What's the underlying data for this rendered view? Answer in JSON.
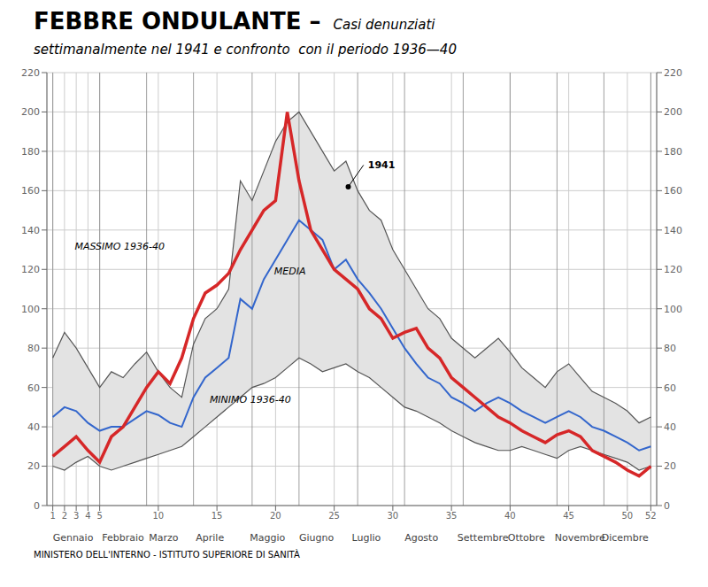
{
  "chart_data": {
    "type": "line",
    "title": "FEBBRE ONDULANTE –",
    "title_note": "Casi denunziati",
    "subtitle": "settimanalmente nel 1941 e confronto  con il periodo 1936—40",
    "footer": "MINISTERO DELL'INTERNO - ISTITUTO SUPERIORE DI SANITÀ",
    "x": [
      1,
      2,
      3,
      4,
      5,
      6,
      7,
      8,
      9,
      10,
      11,
      12,
      13,
      14,
      15,
      16,
      17,
      18,
      19,
      20,
      21,
      22,
      23,
      24,
      25,
      26,
      27,
      28,
      29,
      30,
      31,
      32,
      33,
      34,
      35,
      36,
      37,
      38,
      39,
      40,
      41,
      42,
      43,
      44,
      45,
      46,
      47,
      48,
      49,
      50,
      51,
      52
    ],
    "xlim": [
      0.5,
      52.5
    ],
    "xticks": [
      1,
      2,
      3,
      4,
      5,
      10,
      15,
      20,
      25,
      30,
      35,
      40,
      45,
      50,
      52
    ],
    "ylim": [
      0,
      220
    ],
    "yticks": [
      0,
      20,
      40,
      60,
      80,
      100,
      120,
      140,
      160,
      180,
      200,
      220
    ],
    "y2lim": [
      0,
      220
    ],
    "y2ticks": [
      0,
      20,
      40,
      60,
      80,
      100,
      120,
      140,
      160,
      180,
      200,
      220
    ],
    "grid": true,
    "series": [
      {
        "name": "MASSIMO 1936-40",
        "color": "#555555",
        "values": [
          75,
          88,
          80,
          70,
          60,
          68,
          65,
          72,
          78,
          68,
          60,
          55,
          82,
          95,
          100,
          110,
          165,
          155,
          170,
          185,
          195,
          200,
          190,
          180,
          170,
          175,
          160,
          150,
          145,
          130,
          120,
          110,
          100,
          95,
          85,
          80,
          75,
          80,
          85,
          78,
          70,
          65,
          60,
          68,
          72,
          65,
          58,
          55,
          52,
          48,
          42,
          45
        ]
      },
      {
        "name": "MINIMO 1936-40",
        "color": "#555555",
        "values": [
          20,
          18,
          22,
          25,
          20,
          18,
          20,
          22,
          24,
          26,
          28,
          30,
          35,
          40,
          45,
          50,
          55,
          60,
          62,
          65,
          70,
          75,
          72,
          68,
          70,
          72,
          68,
          65,
          60,
          55,
          50,
          48,
          45,
          42,
          38,
          35,
          32,
          30,
          28,
          28,
          30,
          28,
          26,
          24,
          28,
          30,
          28,
          26,
          24,
          22,
          18,
          20
        ]
      },
      {
        "name": "MEDIA",
        "color": "#3366cc",
        "values": [
          45,
          50,
          48,
          42,
          38,
          40,
          40,
          44,
          48,
          46,
          42,
          40,
          55,
          65,
          70,
          75,
          105,
          100,
          115,
          125,
          135,
          145,
          140,
          135,
          120,
          125,
          115,
          108,
          100,
          90,
          80,
          72,
          65,
          62,
          55,
          52,
          48,
          52,
          55,
          52,
          48,
          45,
          42,
          45,
          48,
          45,
          40,
          38,
          35,
          32,
          28,
          30
        ]
      },
      {
        "name": "1941",
        "color": "#d62728",
        "values": [
          25,
          30,
          35,
          28,
          22,
          35,
          40,
          50,
          60,
          68,
          62,
          75,
          95,
          108,
          112,
          118,
          130,
          140,
          150,
          155,
          200,
          165,
          140,
          130,
          120,
          115,
          110,
          100,
          95,
          85,
          88,
          90,
          80,
          75,
          65,
          60,
          55,
          50,
          45,
          42,
          38,
          35,
          32,
          36,
          38,
          35,
          28,
          25,
          22,
          18,
          15,
          20
        ]
      }
    ],
    "band": {
      "lower": "MINIMO 1936-40",
      "upper": "MASSIMO 1936-40",
      "color": "#e3e3e3"
    },
    "month_labels": [
      "Gennaio",
      "Febbraio",
      "Marzo",
      "Aprile",
      "Maggio",
      "Giugno",
      "Luglio",
      "Agosto",
      "Settembre",
      "Ottobre",
      "Novembre",
      "Dicembre"
    ],
    "month_label_x": [
      1.0,
      5.2,
      9.2,
      13.2,
      17.8,
      22.0,
      26.5,
      31.0,
      35.5,
      39.8,
      43.8,
      47.8
    ],
    "month_boundaries": [
      1,
      5,
      9,
      13,
      18,
      22,
      27,
      31,
      36,
      40,
      44,
      48,
      52
    ],
    "annotations": [
      {
        "text": "MASSIMO 1936-40",
        "x": 2.5,
        "y": 132
      },
      {
        "text": "MINIMO 1936-40",
        "x": 14.0,
        "y": 54
      },
      {
        "text": "MEDIA",
        "x": 19.5,
        "y": 119
      },
      {
        "text": "1941",
        "x": 27.5,
        "y": 173,
        "arrow_to": [
          26.2,
          162
        ]
      }
    ]
  }
}
